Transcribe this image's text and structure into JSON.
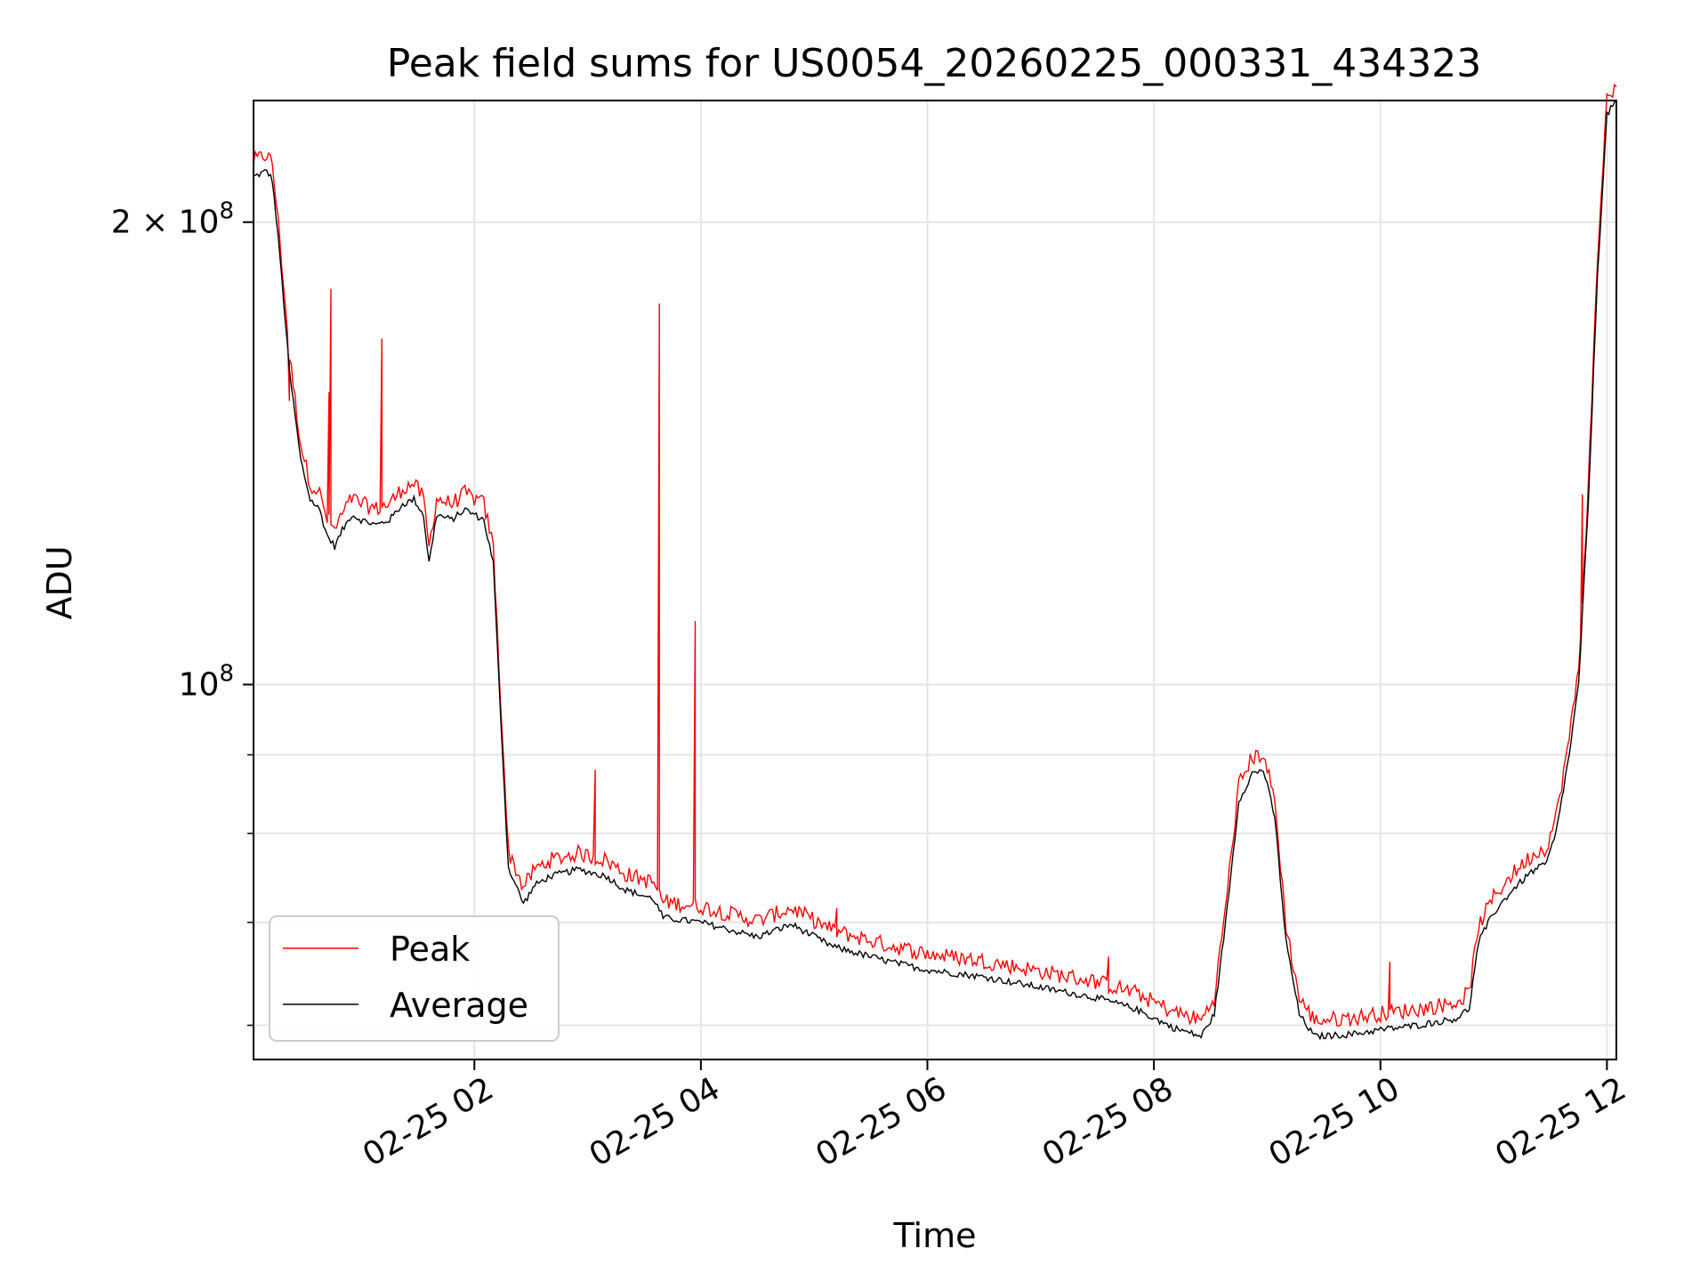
{
  "chart_data": {
    "type": "line",
    "title": "Peak field sums for US0054_20260225_000331_434323",
    "xlabel": "Time",
    "ylabel": "ADU",
    "y_scale": "log",
    "ylim": [
      57000000,
      240000000
    ],
    "xlim": [
      "2026-02-25 00:03",
      "2026-02-25 12:05"
    ],
    "grid": true,
    "legend_position": "lower-left",
    "x_ticks": [
      {
        "value": "2026-02-25 02:00",
        "label": "02-25 02"
      },
      {
        "value": "2026-02-25 04:00",
        "label": "02-25 04"
      },
      {
        "value": "2026-02-25 06:00",
        "label": "02-25 06"
      },
      {
        "value": "2026-02-25 08:00",
        "label": "02-25 08"
      },
      {
        "value": "2026-02-25 10:00",
        "label": "02-25 10"
      },
      {
        "value": "2026-02-25 12:00",
        "label": "02-25 12"
      }
    ],
    "y_major_ticks": [
      {
        "value": 100000000,
        "label_base": "10",
        "label_exp": "8",
        "label_coef": ""
      },
      {
        "value": 200000000,
        "label_base": "10",
        "label_exp": "8",
        "label_coef": "2 × "
      }
    ],
    "y_minor_ticks": [
      60000000,
      70000000,
      80000000,
      90000000
    ],
    "series": [
      {
        "name": "Average",
        "color": "#000000",
        "points": [
          [
            "2026-02-25 00:03",
            214000000
          ],
          [
            "2026-02-25 00:10",
            216000000
          ],
          [
            "2026-02-25 00:13",
            213000000
          ],
          [
            "2026-02-25 00:17",
            190000000
          ],
          [
            "2026-02-25 00:22",
            160000000
          ],
          [
            "2026-02-25 00:28",
            140000000
          ],
          [
            "2026-02-25 00:33",
            132000000
          ],
          [
            "2026-02-25 00:38",
            130000000
          ],
          [
            "2026-02-25 00:42",
            125000000
          ],
          [
            "2026-02-25 00:46",
            123000000
          ],
          [
            "2026-02-25 00:50",
            126000000
          ],
          [
            "2026-02-25 00:55",
            129000000
          ],
          [
            "2026-02-25 01:00",
            128000000
          ],
          [
            "2026-02-25 01:08",
            127000000
          ],
          [
            "2026-02-25 01:15",
            128000000
          ],
          [
            "2026-02-25 01:22",
            131000000
          ],
          [
            "2026-02-25 01:28",
            132000000
          ],
          [
            "2026-02-25 01:33",
            129000000
          ],
          [
            "2026-02-25 01:36",
            120000000
          ],
          [
            "2026-02-25 01:40",
            129000000
          ],
          [
            "2026-02-25 01:48",
            128000000
          ],
          [
            "2026-02-25 01:55",
            130000000
          ],
          [
            "2026-02-25 02:05",
            128000000
          ],
          [
            "2026-02-25 02:10",
            120000000
          ],
          [
            "2026-02-25 02:14",
            95000000
          ],
          [
            "2026-02-25 02:18",
            76000000
          ],
          [
            "2026-02-25 02:22",
            74000000
          ],
          [
            "2026-02-25 02:26",
            72000000
          ],
          [
            "2026-02-25 02:32",
            74000000
          ],
          [
            "2026-02-25 02:40",
            75000000
          ],
          [
            "2026-02-25 02:55",
            75800000
          ],
          [
            "2026-02-25 03:10",
            75000000
          ],
          [
            "2026-02-25 03:20",
            73500000
          ],
          [
            "2026-02-25 03:35",
            72500000
          ],
          [
            "2026-02-25 03:40",
            70500000
          ],
          [
            "2026-02-25 04:00",
            70000000
          ],
          [
            "2026-02-25 04:30",
            68500000
          ],
          [
            "2026-02-25 04:48",
            69800000
          ],
          [
            "2026-02-25 05:10",
            67500000
          ],
          [
            "2026-02-25 05:40",
            66000000
          ],
          [
            "2026-02-25 06:00",
            65200000
          ],
          [
            "2026-02-25 06:30",
            64500000
          ],
          [
            "2026-02-25 07:00",
            63500000
          ],
          [
            "2026-02-25 07:30",
            62500000
          ],
          [
            "2026-02-25 07:50",
            61500000
          ],
          [
            "2026-02-25 08:10",
            59800000
          ],
          [
            "2026-02-25 08:25",
            59000000
          ],
          [
            "2026-02-25 08:32",
            61000000
          ],
          [
            "2026-02-25 08:38",
            70000000
          ],
          [
            "2026-02-25 08:45",
            84000000
          ],
          [
            "2026-02-25 08:52",
            87500000
          ],
          [
            "2026-02-25 08:58",
            88000000
          ],
          [
            "2026-02-25 09:04",
            82000000
          ],
          [
            "2026-02-25 09:10",
            68000000
          ],
          [
            "2026-02-25 09:17",
            61000000
          ],
          [
            "2026-02-25 09:25",
            59000000
          ],
          [
            "2026-02-25 09:45",
            59200000
          ],
          [
            "2026-02-25 10:00",
            59600000
          ],
          [
            "2026-02-25 10:20",
            60000000
          ],
          [
            "2026-02-25 10:40",
            60600000
          ],
          [
            "2026-02-25 10:47",
            61500000
          ],
          [
            "2026-02-25 10:52",
            68000000
          ],
          [
            "2026-02-25 11:00",
            71000000
          ],
          [
            "2026-02-25 11:10",
            73500000
          ],
          [
            "2026-02-25 11:20",
            75500000
          ],
          [
            "2026-02-25 11:28",
            76500000
          ],
          [
            "2026-02-25 11:33",
            80000000
          ],
          [
            "2026-02-25 11:40",
            90000000
          ],
          [
            "2026-02-25 11:45",
            100000000
          ],
          [
            "2026-02-25 11:50",
            130000000
          ],
          [
            "2026-02-25 11:55",
            185000000
          ],
          [
            "2026-02-25 12:00",
            235000000
          ],
          [
            "2026-02-25 12:05",
            240000000
          ]
        ]
      },
      {
        "name": "Peak",
        "color": "#ff0000",
        "offset_ratio": 1.012,
        "spikes": [
          [
            "2026-02-25 00:44",
            181000000
          ],
          [
            "2026-02-25 00:43",
            155000000
          ],
          [
            "2026-02-25 01:11",
            168000000
          ],
          [
            "2026-02-25 00:22",
            153000000
          ],
          [
            "2026-02-25 03:04",
            88000000
          ],
          [
            "2026-02-25 03:38",
            177000000
          ],
          [
            "2026-02-25 03:57",
            110000000
          ],
          [
            "2026-02-25 05:12",
            71500000
          ],
          [
            "2026-02-25 07:36",
            66500000
          ],
          [
            "2026-02-25 10:05",
            66000000
          ],
          [
            "2026-02-25 11:47",
            133000000
          ]
        ]
      }
    ]
  }
}
